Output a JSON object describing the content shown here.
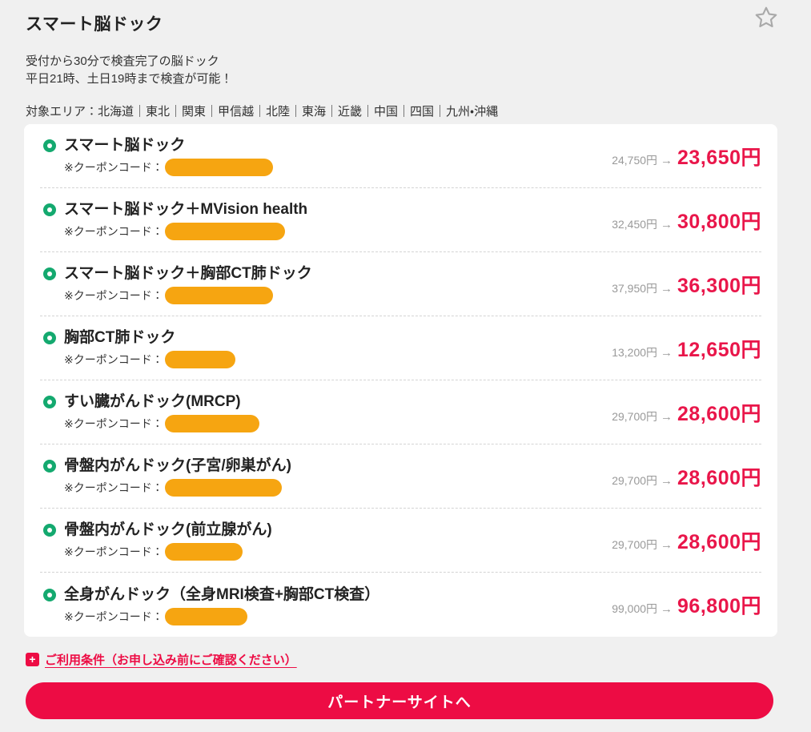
{
  "header": {
    "title": "スマート脳ドック",
    "desc1": "受付から30分で検査完了の脳ドック",
    "desc2": "平日21時、土日19時まで検査が可能！",
    "area_text": "対象エリア：北海道｜東北｜関東｜甲信越｜北陸｜東海｜近畿｜中国｜四国｜九州・沖縄",
    "favorite_icon": "star-outline"
  },
  "colors": {
    "accent_red": "#ed0c44",
    "price_red": "#e9164a",
    "bullet_green": "#14a96f",
    "coupon_mask_orange": "#f6a511",
    "muted_gray": "#999999",
    "page_bg": "#f0f0f0"
  },
  "price_arrow": "→",
  "plans": [
    {
      "name": "スマート脳ドック",
      "coupon_label": "※クーポンコード：",
      "coupon_mask_width": 135,
      "original_price": "24,750円",
      "price": "23,650円"
    },
    {
      "name": "スマート脳ドック＋MVision health",
      "coupon_label": "※クーポンコード：",
      "coupon_mask_width": 150,
      "original_price": "32,450円",
      "price": "30,800円"
    },
    {
      "name": "スマート脳ドック＋胸部CT肺ドック",
      "coupon_label": "※クーポンコード：",
      "coupon_mask_width": 135,
      "original_price": "37,950円",
      "price": "36,300円"
    },
    {
      "name": "胸部CT肺ドック",
      "coupon_label": "※クーポンコード：",
      "coupon_mask_width": 88,
      "original_price": "13,200円",
      "price": "12,650円"
    },
    {
      "name": "すい臓がんドック(MRCP)",
      "coupon_label": "※クーポンコード：",
      "coupon_mask_width": 118,
      "original_price": "29,700円",
      "price": "28,600円"
    },
    {
      "name": "骨盤内がんドック(子宮/卵巣がん)",
      "coupon_label": "※クーポンコード：",
      "coupon_mask_width": 146,
      "original_price": "29,700円",
      "price": "28,600円"
    },
    {
      "name": "骨盤内がんドック(前立腺がん)",
      "coupon_label": "※クーポンコード：",
      "coupon_mask_width": 97,
      "original_price": "29,700円",
      "price": "28,600円"
    },
    {
      "name": "全身がんドック（全身MRI検査+胸部CT検査）",
      "coupon_label": "※クーポンコード：",
      "coupon_mask_width": 103,
      "original_price": "99,000円",
      "price": "96,800円"
    }
  ],
  "terms": {
    "plus_icon": "+",
    "label": "ご利用条件（お申し込み前にご確認ください）"
  },
  "cta": {
    "label": "パートナーサイトへ"
  }
}
